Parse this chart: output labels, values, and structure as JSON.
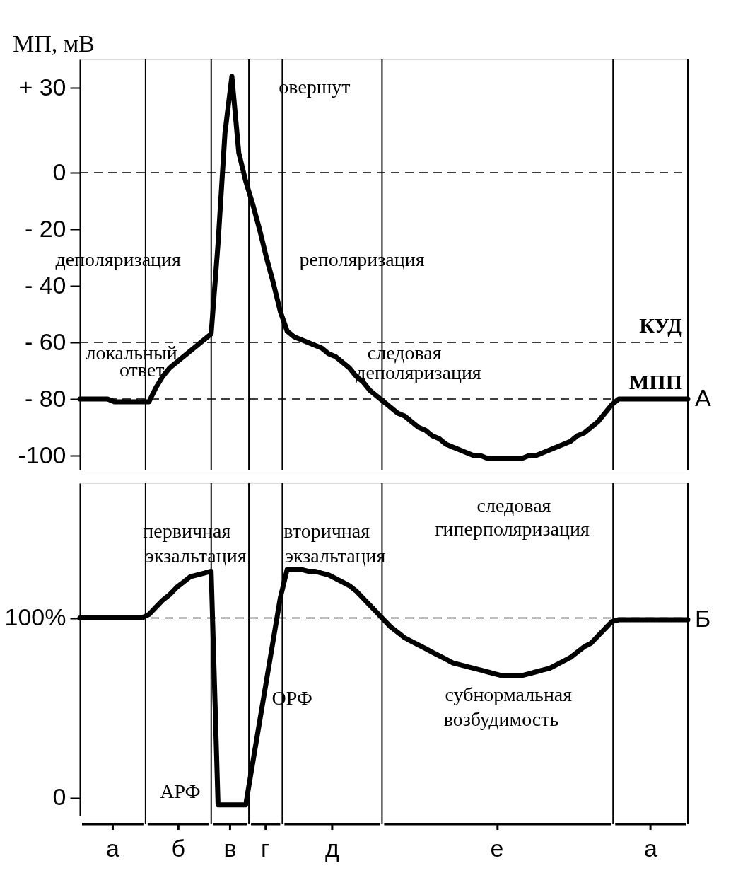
{
  "chart_data": [
    {
      "type": "line",
      "ylabel": "МП, мВ",
      "ylim": [
        -105,
        40
      ],
      "tick_labels": "y",
      "grid": false,
      "legend": false,
      "marker": "none",
      "line_style": "solid",
      "categories": [
        null,
        null,
        null,
        null,
        null,
        null,
        null,
        null,
        null,
        null,
        null,
        null,
        null,
        null,
        null,
        null,
        null,
        null,
        null,
        null,
        null,
        null,
        null,
        null,
        null,
        null,
        null,
        null,
        null,
        null,
        null,
        null,
        null,
        null,
        null,
        null,
        null,
        null,
        null,
        null,
        null,
        null,
        null,
        null,
        null,
        null,
        null,
        null,
        null,
        null,
        null,
        null,
        null,
        null,
        null,
        null,
        null,
        null,
        null,
        null,
        null,
        null,
        null,
        null,
        null,
        null,
        null,
        null,
        null,
        null,
        null,
        null,
        null,
        null,
        null,
        null,
        null,
        null,
        null,
        null,
        null,
        null,
        null,
        null,
        null,
        null,
        null,
        null,
        null
      ],
      "yticks": [
        {
          "value": 30,
          "label": "+ 30"
        },
        0,
        {
          "value": -20,
          "label": "- 20"
        },
        {
          "value": -40,
          "label": "- 40"
        },
        {
          "value": -60,
          "label": "- 60"
        },
        {
          "value": -80,
          "label": "- 80"
        },
        -100
      ],
      "series": [
        {
          "name": "А",
          "color": "#000000",
          "values": [
            -80,
            -80,
            -80,
            -80,
            -80,
            -81,
            -81,
            -81,
            -81,
            -81,
            -81,
            -76,
            -72,
            -69,
            -67,
            -65,
            -63,
            -61,
            -59,
            -57,
            -25,
            14,
            34,
            7,
            -3,
            -11,
            -20,
            -30,
            -39,
            -49,
            -56,
            -58,
            -59,
            -60,
            -61,
            -62,
            -64,
            -65,
            -67,
            -69,
            -72,
            -74,
            -77,
            -79,
            -81,
            -83,
            -85,
            -86,
            -88,
            -90,
            -91,
            -93,
            -94,
            -96,
            -97,
            -98,
            -99,
            -100,
            -100,
            -101,
            -101,
            -101,
            -101,
            -101,
            -101,
            -100,
            -100,
            -99,
            -98,
            -97,
            -96,
            -95,
            -93,
            -92,
            -90,
            -88,
            -85,
            -82,
            -80,
            -80,
            -80,
            -80,
            -80,
            -80,
            -80,
            -80,
            -80,
            -80,
            -80
          ]
        }
      ],
      "ref_lines": [
        {
          "axis": "y",
          "value": 0,
          "line_style": "dashed"
        },
        {
          "axis": "y",
          "value": -60,
          "label": "КУД",
          "line_style": "dashed"
        },
        {
          "axis": "y",
          "value": -80,
          "label": "МПП",
          "line_style": "dashed"
        }
      ],
      "annotations": [
        "овершут",
        "деполяризация",
        "реполяризация",
        "локальный",
        "ответ",
        "следовая",
        "деполяризация"
      ]
    },
    {
      "type": "line",
      "ylim": [
        -10,
        175
      ],
      "tick_labels": "y",
      "grid": false,
      "legend": false,
      "marker": "none",
      "line_style": "solid",
      "categories": [
        null,
        null,
        null,
        null,
        null,
        null,
        null,
        null,
        null,
        null,
        null,
        null,
        null,
        null,
        null,
        null,
        null,
        null,
        null,
        null,
        null,
        null,
        null,
        null,
        null,
        null,
        null,
        null,
        null,
        null,
        null,
        null,
        null,
        null,
        null,
        null,
        null,
        null,
        null,
        null,
        null,
        null,
        null,
        null,
        null,
        null,
        null,
        null,
        null,
        null,
        null,
        null,
        null,
        null,
        null,
        null,
        null,
        null,
        null,
        null,
        null,
        null,
        null,
        null,
        null,
        null,
        null,
        null,
        null,
        null,
        null,
        null,
        null,
        null,
        null,
        null,
        null,
        null,
        null,
        null,
        null,
        null,
        null,
        null,
        null,
        null,
        null,
        null,
        null
      ],
      "yticks": [
        {
          "value": 100,
          "label": "100%"
        },
        0
      ],
      "series": [
        {
          "name": "Б",
          "color": "#000000",
          "values": [
            100,
            100,
            100,
            100,
            100,
            100,
            100,
            100,
            100,
            100,
            102,
            106,
            110,
            113,
            117,
            120,
            123,
            124,
            125,
            126,
            -4,
            -4,
            -4,
            -4,
            -4,
            19,
            42,
            65,
            88,
            111,
            127,
            127,
            127,
            126,
            126,
            125,
            124,
            122,
            120,
            118,
            115,
            111,
            107,
            103,
            99,
            95,
            92,
            89,
            87,
            85,
            83,
            81,
            79,
            77,
            75,
            74,
            73,
            72,
            71,
            70,
            69,
            68,
            68,
            68,
            68,
            69,
            70,
            71,
            72,
            74,
            76,
            78,
            81,
            84,
            86,
            90,
            94,
            98,
            99,
            99,
            99,
            99,
            99,
            99,
            99,
            99,
            99,
            99,
            99
          ]
        }
      ],
      "ref_lines": [
        {
          "axis": "y",
          "value": 100,
          "line_style": "dashed"
        }
      ],
      "annotations": [
        "следовая",
        "гиперполяризация",
        "первичная",
        "экзальтация",
        "вторичная",
        "экзальтация",
        "ОРФ",
        "АРФ",
        "субнормальная",
        "возбудимость",
        "а",
        "б",
        "в",
        "г",
        "д",
        "е",
        "а"
      ]
    }
  ]
}
